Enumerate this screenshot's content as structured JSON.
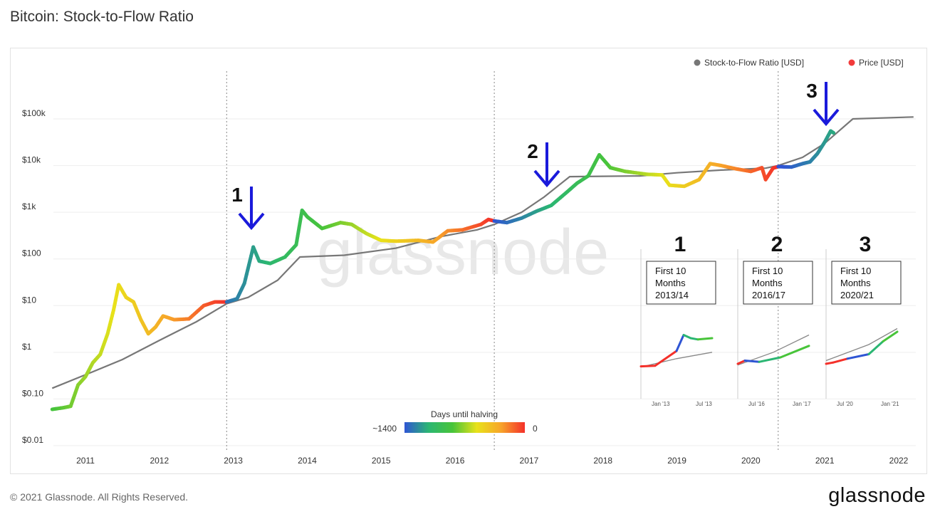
{
  "header": {
    "title": "Bitcoin: Stock-to-Flow Ratio"
  },
  "footer": {
    "copyright": "© 2021 Glassnode. All Rights Reserved.",
    "brand": "glassnode"
  },
  "watermark": "glassnode",
  "legend": {
    "items": [
      {
        "label": "Stock-to-Flow Ratio [USD]",
        "color": "#777777"
      },
      {
        "label": "Price [USD]",
        "color": "#f23b3b"
      }
    ]
  },
  "colorbar": {
    "title": "Days until halving",
    "min_label": "~1400",
    "max_label": "0",
    "colors": [
      "#2f55d4",
      "#2bb673",
      "#48c43a",
      "#e8e21a",
      "#f7a52a",
      "#f4302a"
    ]
  },
  "annotations": [
    {
      "label": "1",
      "arrow_color": "#1a1adb"
    },
    {
      "label": "2",
      "arrow_color": "#1a1adb"
    },
    {
      "label": "3",
      "arrow_color": "#1a1adb"
    }
  ],
  "insets": [
    {
      "number": "1",
      "box_lines": [
        "First 10",
        "Months",
        "2013/14"
      ],
      "ticks": [
        "Jan '13",
        "Jul '13"
      ]
    },
    {
      "number": "2",
      "box_lines": [
        "First 10",
        "Months",
        "2016/17"
      ],
      "ticks": [
        "Jul '16",
        "Jan '17"
      ]
    },
    {
      "number": "3",
      "box_lines": [
        "First 10",
        "Months",
        "2020/21"
      ],
      "ticks": [
        "Jul '20",
        "Jan '21"
      ]
    }
  ],
  "chart_data": {
    "type": "line",
    "title": "Bitcoin: Stock-to-Flow Ratio",
    "y_scale": "log",
    "ylim": [
      0.01,
      200000
    ],
    "xlim": [
      2010.55,
      2022.2
    ],
    "y_ticks": [
      {
        "value": 100000,
        "label": "$100k"
      },
      {
        "value": 10000,
        "label": "$10k"
      },
      {
        "value": 1000,
        "label": "$1k"
      },
      {
        "value": 100,
        "label": "$100"
      },
      {
        "value": 10,
        "label": "$10"
      },
      {
        "value": 1,
        "label": "$1"
      },
      {
        "value": 0.1,
        "label": "$0.10"
      },
      {
        "value": 0.01,
        "label": "$0.01"
      }
    ],
    "x_ticks": [
      "2011",
      "2012",
      "2013",
      "2014",
      "2015",
      "2016",
      "2017",
      "2018",
      "2019",
      "2020",
      "2021",
      "2022"
    ],
    "halving_lines": [
      2012.91,
      2016.53,
      2020.37
    ],
    "grid": "horizontal",
    "legend_position": "top-right",
    "series": [
      {
        "name": "Stock-to-Flow Ratio [USD]",
        "color": "#777777",
        "points": [
          [
            2010.55,
            0.17
          ],
          [
            2011.0,
            0.33
          ],
          [
            2011.5,
            0.7
          ],
          [
            2012.0,
            1.8
          ],
          [
            2012.5,
            4.5
          ],
          [
            2012.91,
            11
          ],
          [
            2013.2,
            15
          ],
          [
            2013.6,
            35
          ],
          [
            2013.9,
            110
          ],
          [
            2014.5,
            120
          ],
          [
            2015.2,
            170
          ],
          [
            2015.8,
            300
          ],
          [
            2016.3,
            420
          ],
          [
            2016.53,
            550
          ],
          [
            2016.9,
            1000
          ],
          [
            2017.2,
            2100
          ],
          [
            2017.55,
            5800
          ],
          [
            2018.0,
            5900
          ],
          [
            2018.5,
            6000
          ],
          [
            2019.0,
            7000
          ],
          [
            2019.6,
            8000
          ],
          [
            2020.2,
            8800
          ],
          [
            2020.37,
            10000
          ],
          [
            2020.7,
            15000
          ],
          [
            2021.0,
            30000
          ],
          [
            2021.38,
            100000
          ],
          [
            2022.2,
            110000
          ]
        ]
      },
      {
        "name": "Price [USD]",
        "color": "#f23b3b",
        "points": [
          [
            2010.55,
            0.06
          ],
          [
            2010.7,
            0.065
          ],
          [
            2010.8,
            0.07
          ],
          [
            2010.9,
            0.2
          ],
          [
            2011.0,
            0.3
          ],
          [
            2011.1,
            0.6
          ],
          [
            2011.2,
            0.9
          ],
          [
            2011.3,
            2.5
          ],
          [
            2011.38,
            8
          ],
          [
            2011.45,
            28
          ],
          [
            2011.55,
            15
          ],
          [
            2011.65,
            12
          ],
          [
            2011.75,
            5
          ],
          [
            2011.85,
            2.5
          ],
          [
            2011.95,
            3.5
          ],
          [
            2012.05,
            6
          ],
          [
            2012.2,
            5
          ],
          [
            2012.4,
            5.2
          ],
          [
            2012.6,
            10
          ],
          [
            2012.75,
            12
          ],
          [
            2012.91,
            12
          ],
          [
            2013.05,
            14
          ],
          [
            2013.15,
            30
          ],
          [
            2013.27,
            180
          ],
          [
            2013.35,
            90
          ],
          [
            2013.5,
            80
          ],
          [
            2013.7,
            110
          ],
          [
            2013.85,
            200
          ],
          [
            2013.93,
            1100
          ],
          [
            2014.0,
            800
          ],
          [
            2014.1,
            600
          ],
          [
            2014.2,
            450
          ],
          [
            2014.45,
            600
          ],
          [
            2014.6,
            550
          ],
          [
            2014.8,
            350
          ],
          [
            2015.0,
            250
          ],
          [
            2015.2,
            240
          ],
          [
            2015.5,
            250
          ],
          [
            2015.7,
            230
          ],
          [
            2015.9,
            400
          ],
          [
            2016.1,
            420
          ],
          [
            2016.35,
            550
          ],
          [
            2016.45,
            700
          ],
          [
            2016.53,
            650
          ],
          [
            2016.7,
            600
          ],
          [
            2016.9,
            750
          ],
          [
            2017.1,
            1050
          ],
          [
            2017.3,
            1400
          ],
          [
            2017.5,
            2600
          ],
          [
            2017.65,
            4200
          ],
          [
            2017.8,
            6000
          ],
          [
            2017.95,
            17000
          ],
          [
            2018.1,
            9000
          ],
          [
            2018.3,
            7500
          ],
          [
            2018.6,
            6500
          ],
          [
            2018.8,
            6300
          ],
          [
            2018.9,
            3800
          ],
          [
            2019.1,
            3600
          ],
          [
            2019.3,
            5000
          ],
          [
            2019.45,
            11000
          ],
          [
            2019.6,
            10000
          ],
          [
            2019.8,
            8500
          ],
          [
            2020.0,
            7500
          ],
          [
            2020.15,
            9000
          ],
          [
            2020.2,
            5000
          ],
          [
            2020.3,
            8800
          ],
          [
            2020.37,
            9500
          ],
          [
            2020.55,
            9300
          ],
          [
            2020.7,
            11000
          ],
          [
            2020.8,
            12000
          ],
          [
            2020.9,
            18000
          ],
          [
            2021.0,
            32000
          ],
          [
            2021.08,
            55000
          ],
          [
            2021.12,
            50000
          ]
        ]
      }
    ]
  }
}
